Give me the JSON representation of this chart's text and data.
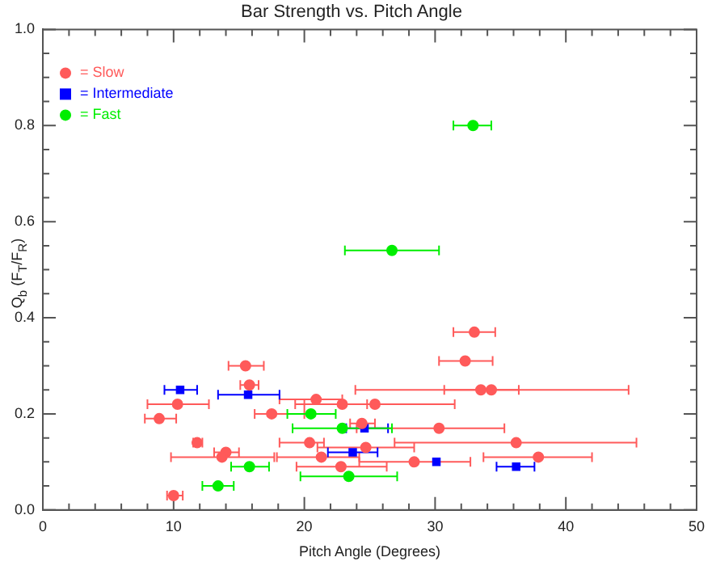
{
  "chart_data": {
    "type": "scatter",
    "title": "Bar Strength vs. Pitch Angle",
    "xlabel": "Pitch Angle (Degrees)",
    "ylabel": "Q$_{b}$ (F$_{T}$/F$_{R}$)",
    "xlim": [
      0,
      50
    ],
    "ylim": [
      0,
      1
    ],
    "xticks": [
      0,
      {
        "value": 2,
        "label": null
      },
      {
        "value": 4,
        "label": null
      },
      {
        "value": 6,
        "label": null
      },
      {
        "value": 8,
        "label": null
      },
      10,
      {
        "value": 12,
        "label": null
      },
      {
        "value": 14,
        "label": null
      },
      {
        "value": 16,
        "label": null
      },
      {
        "value": 18,
        "label": null
      },
      20,
      {
        "value": 22,
        "label": null
      },
      {
        "value": 24,
        "label": null
      },
      {
        "value": 26,
        "label": null
      },
      {
        "value": 28,
        "label": null
      },
      30,
      {
        "value": 32,
        "label": null
      },
      {
        "value": 34,
        "label": null
      },
      {
        "value": 36,
        "label": null
      },
      {
        "value": 38,
        "label": null
      },
      40,
      {
        "value": 42,
        "label": null
      },
      {
        "value": 44,
        "label": null
      },
      {
        "value": 46,
        "label": null
      },
      {
        "value": 48,
        "label": null
      },
      50
    ],
    "yticks": [
      {
        "value": 0,
        "label": "0.0"
      },
      {
        "value": 0.05,
        "label": null
      },
      {
        "value": 0.1,
        "label": null
      },
      {
        "value": 0.15,
        "label": null
      },
      0.2,
      {
        "value": 0.25,
        "label": null
      },
      {
        "value": 0.3,
        "label": null
      },
      {
        "value": 0.35,
        "label": null
      },
      0.4,
      {
        "value": 0.45,
        "label": null
      },
      {
        "value": 0.5,
        "label": null
      },
      {
        "value": 0.55,
        "label": null
      },
      0.6,
      {
        "value": 0.65,
        "label": null
      },
      {
        "value": 0.7,
        "label": null
      },
      {
        "value": 0.75,
        "label": null
      },
      0.8,
      {
        "value": 0.85,
        "label": null
      },
      {
        "value": 0.9,
        "label": null
      },
      {
        "value": 0.95,
        "label": null
      },
      {
        "value": 1,
        "label": "1.0"
      }
    ],
    "grid": false,
    "legend": "top left",
    "series": [
      {
        "name": "= Slow",
        "color": "#ff5a5a",
        "marker": "circle",
        "x": [
          33.0,
          32.3,
          15.5,
          15.8,
          33.5,
          34.3,
          10.3,
          20.9,
          22.9,
          25.4,
          8.9,
          17.5,
          24.4,
          30.3,
          11.8,
          20.4,
          24.7,
          36.2,
          14.0,
          13.7,
          21.3,
          28.4,
          37.9,
          22.8,
          10.0
        ],
        "values": [
          0.37,
          0.31,
          0.3,
          0.26,
          0.25,
          0.25,
          0.22,
          0.23,
          0.22,
          0.22,
          0.19,
          0.2,
          0.18,
          0.17,
          0.14,
          0.14,
          0.13,
          0.14,
          0.12,
          0.11,
          0.11,
          0.1,
          0.11,
          0.09,
          0.03
        ],
        "xerrors": [
          [
            31.4,
            34.6
          ],
          [
            30.3,
            34.4
          ],
          [
            14.2,
            16.9
          ],
          [
            15.1,
            16.5
          ],
          [
            23.9,
            44.8
          ],
          [
            30.7,
            36.4
          ],
          [
            8.0,
            12.7
          ],
          [
            18.1,
            22.9
          ],
          [
            20.0,
            24.8
          ],
          [
            19.3,
            31.5
          ],
          [
            7.8,
            10.2
          ],
          [
            16.2,
            20.0
          ],
          [
            23.5,
            25.4
          ],
          [
            24.0,
            35.3
          ],
          [
            11.5,
            12.2
          ],
          [
            18.1,
            21.5
          ],
          [
            21.0,
            28.4
          ],
          [
            26.9,
            45.4
          ],
          [
            13.1,
            15.0
          ],
          [
            9.8,
            17.7
          ],
          [
            17.9,
            24.2
          ],
          [
            24.2,
            32.7
          ],
          [
            33.7,
            42.0
          ],
          [
            19.4,
            26.3
          ],
          [
            9.5,
            10.7
          ]
        ]
      },
      {
        "name": "= Intermediate",
        "color": "#0000ff",
        "marker": "square",
        "x": [
          10.5,
          15.7,
          24.6,
          23.7,
          30.1,
          36.2
        ],
        "values": [
          0.25,
          0.24,
          0.17,
          0.12,
          0.1,
          0.09
        ],
        "xerrors": [
          [
            9.3,
            11.8
          ],
          [
            13.4,
            18.1
          ],
          [
            23.2,
            26.4
          ],
          [
            21.8,
            25.6
          ],
          null,
          [
            34.7,
            37.6
          ]
        ]
      },
      {
        "name": "= Fast",
        "color": "#00ee00",
        "marker": "circle",
        "x": [
          32.9,
          26.7,
          20.5,
          22.9,
          15.8,
          13.4,
          23.4
        ],
        "values": [
          0.8,
          0.54,
          0.2,
          0.17,
          0.09,
          0.05,
          0.07
        ],
        "xerrors": [
          [
            31.4,
            34.3
          ],
          [
            23.1,
            30.3
          ],
          [
            18.7,
            22.4
          ],
          [
            19.1,
            26.7
          ],
          [
            14.4,
            17.3
          ],
          [
            12.2,
            14.6
          ],
          [
            19.7,
            27.1
          ]
        ]
      }
    ]
  }
}
